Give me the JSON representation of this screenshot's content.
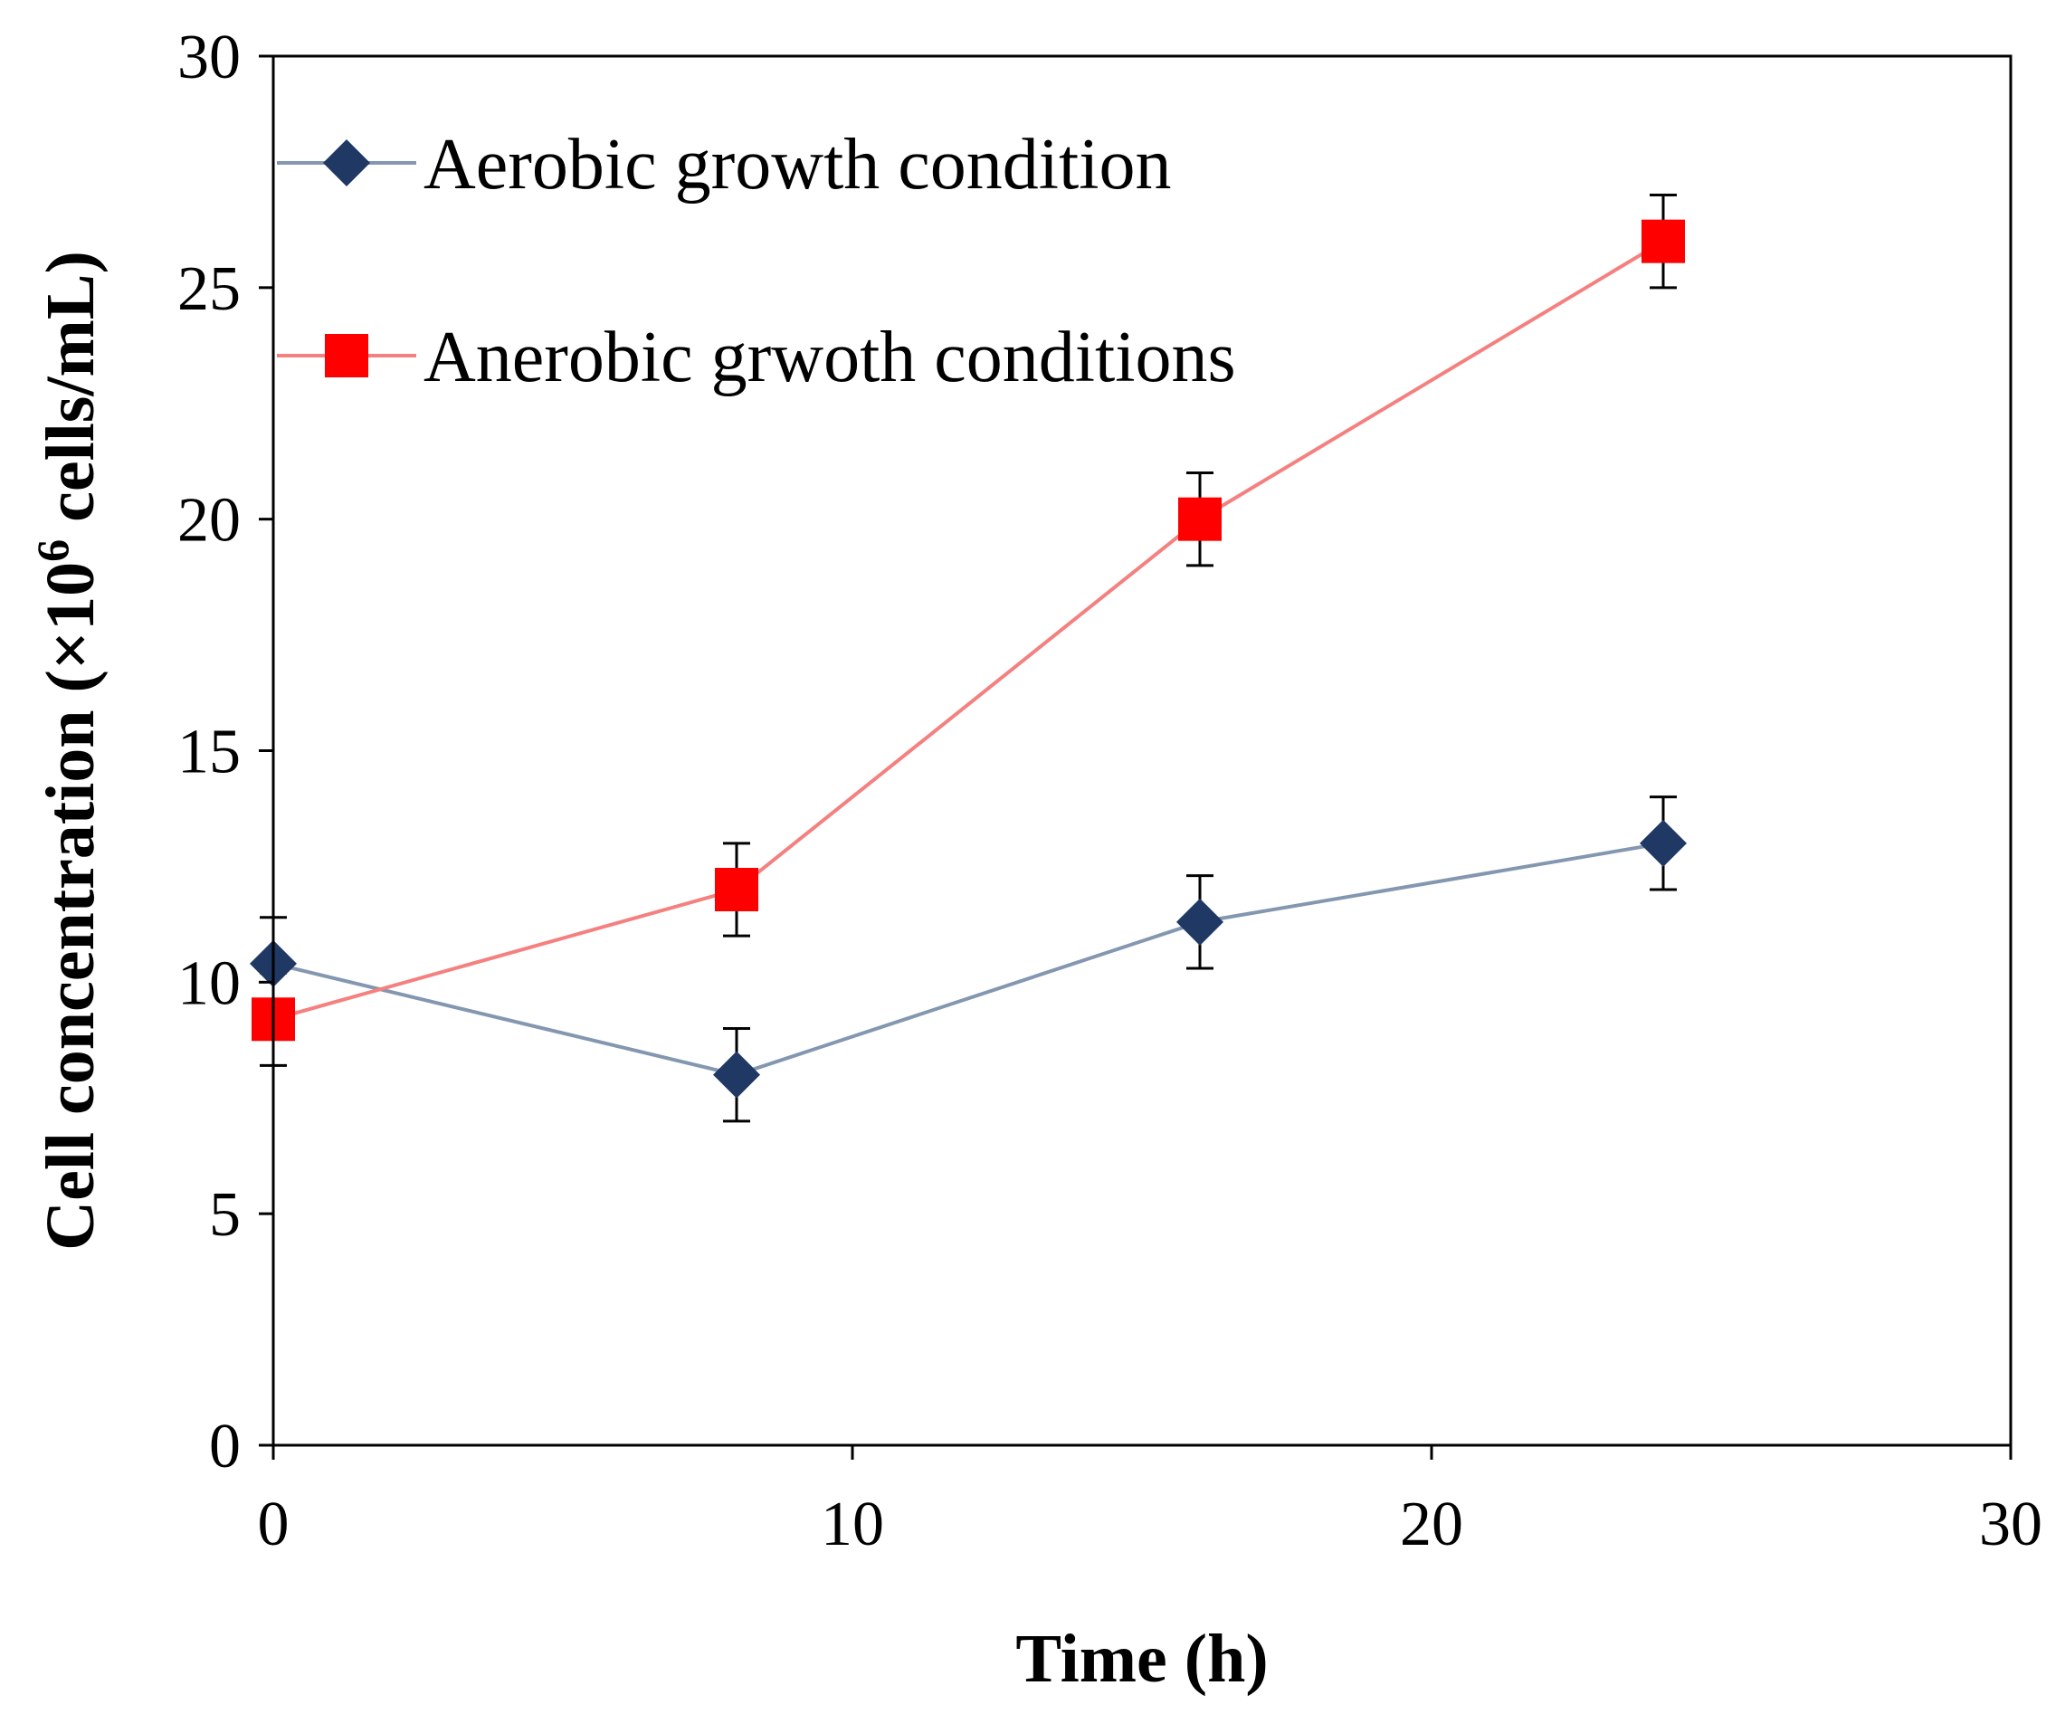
{
  "chart_data": {
    "type": "line",
    "xlabel": "Time (h)",
    "ylabel_prefix": "Cell concentration (×10",
    "ylabel_sup": "6",
    "ylabel_suffix": " cells/mL)",
    "xlim": [
      0,
      30
    ],
    "ylim": [
      0,
      30
    ],
    "x_ticks": [
      0,
      10,
      20,
      30
    ],
    "y_ticks": [
      0,
      5,
      10,
      15,
      20,
      25,
      30
    ],
    "x_tick_labels": [
      "0",
      "10",
      "20",
      "30"
    ],
    "y_tick_labels": [
      "0",
      "5",
      "10",
      "15",
      "20",
      "25",
      "30"
    ],
    "grid": false,
    "legend_position": "top-left",
    "series": [
      {
        "name": "Aerobic growth condition",
        "marker": "diamond",
        "line_color": "#8497b0",
        "marker_color": "#1f3864",
        "x": [
          0,
          8,
          16,
          24
        ],
        "y": [
          10.4,
          8.0,
          11.3,
          13.0
        ],
        "error": [
          1.0,
          1.0,
          1.0,
          1.0
        ]
      },
      {
        "name": "Anerobic grwoth conditions",
        "marker": "square",
        "line_color": "#f4807f",
        "marker_color": "#ff0000",
        "x": [
          0,
          8,
          16,
          24
        ],
        "y": [
          9.2,
          12.0,
          20.0,
          26.0
        ],
        "error": [
          1.0,
          1.0,
          1.0,
          1.0
        ]
      }
    ]
  }
}
